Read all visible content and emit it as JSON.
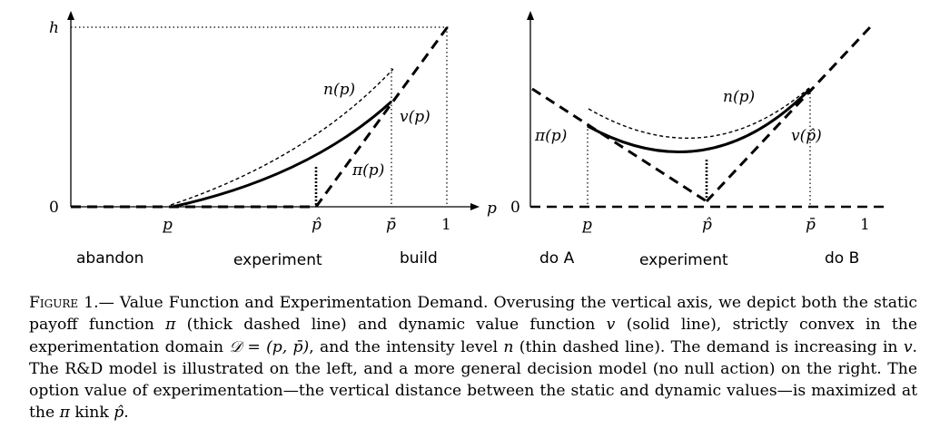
{
  "left_panel": {
    "y_axis_label": "h",
    "y_zero_label": "0",
    "x_axis_label": "p",
    "tick_labels": {
      "p_low": "p",
      "p_hat": "p̂",
      "p_bar": "p̄",
      "one": "1"
    },
    "curve_labels": {
      "n": "n(p)",
      "v": "v(p)",
      "pi": "π(p)"
    },
    "regions": [
      "abandon",
      "experiment",
      "build"
    ]
  },
  "right_panel": {
    "y_zero_label": "0",
    "tick_labels": {
      "p_low": "p",
      "p_hat": "p̂",
      "p_bar": "p̄",
      "one": "1"
    },
    "curve_labels": {
      "n": "n(p)",
      "v": "v(p̂)",
      "pi": "π(p)"
    },
    "regions": [
      "do A",
      "experiment",
      "do B"
    ]
  },
  "caption": {
    "label": "Figure 1.",
    "title_sep": "— ",
    "text_1": "Value Function and Experimentation Demand. Overusing the vertical axis, we depict both the static payoff function ",
    "pi": "π",
    "text_2": " (thick dashed line) and dynamic value function ",
    "v": "v",
    "text_3": " (solid line), strictly convex in the experimentation domain ",
    "domain": "𝒟 = (p, p̄)",
    "text_4": ", and the intensity level ",
    "n": "n",
    "text_5": " (thin dashed line). The demand is increasing in ",
    "v2": "v",
    "text_6": ". The R&D model is illustrated on the left, and a more general decision model (no null action) on the right. The option value of experimentation—the vertical distance between the static and dynamic values—is maximized at the ",
    "pi2": "π",
    "text_7": " kink ",
    "phat": "p̂",
    "text_8": "."
  }
}
